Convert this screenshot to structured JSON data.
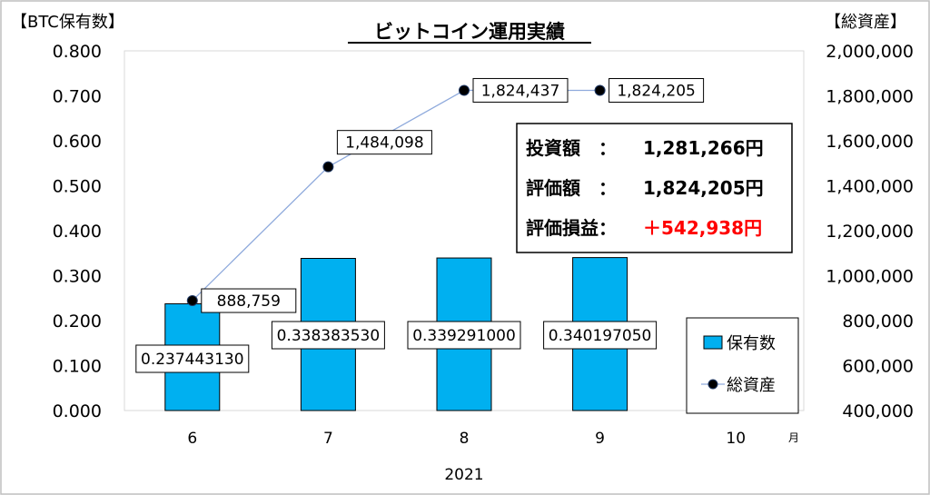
{
  "chart_data": {
    "type": "bar",
    "title": "ビットコイン運用実績",
    "y_left_label": "【BTC保有数】",
    "y_right_label": "【総資産】",
    "x_unit": "月",
    "x_group_label": "2021",
    "categories": [
      "6",
      "7",
      "8",
      "9",
      "10"
    ],
    "y_left_ticks": [
      "0.000",
      "0.100",
      "0.200",
      "0.300",
      "0.400",
      "0.500",
      "0.600",
      "0.700",
      "0.800"
    ],
    "y_right_ticks": [
      "400,000",
      "600,000",
      "800,000",
      "1,000,000",
      "1,200,000",
      "1,400,000",
      "1,600,000",
      "1,800,000",
      "2,000,000"
    ],
    "ylim_left": [
      0,
      0.8
    ],
    "ylim_right": [
      400000,
      2000000
    ],
    "series": [
      {
        "name": "保有数",
        "type": "bar",
        "axis": "left",
        "color": "#00b0f0",
        "values": [
          0.23744313,
          0.33838353,
          0.339291,
          0.34019705,
          null
        ],
        "labels": [
          "0.237443130",
          "0.338383530",
          "0.339291000",
          "0.340197050",
          ""
        ]
      },
      {
        "name": "総資産",
        "type": "line",
        "axis": "right",
        "color": "#8faadc",
        "values": [
          888759,
          1484098,
          1824437,
          1824205,
          null
        ],
        "labels": [
          "888,759",
          "1,484,098",
          "1,824,437",
          "1,824,205",
          ""
        ]
      }
    ],
    "legend_position": "bottom-right",
    "grid": false,
    "summary": {
      "investment_label": "投資額　：",
      "investment_value": "1,281,266円",
      "valuation_label": "評価額　：",
      "valuation_value": "1,824,205円",
      "profit_label": "評価損益：",
      "profit_value": "＋542,938円",
      "profit_color": "#ff0000"
    }
  }
}
